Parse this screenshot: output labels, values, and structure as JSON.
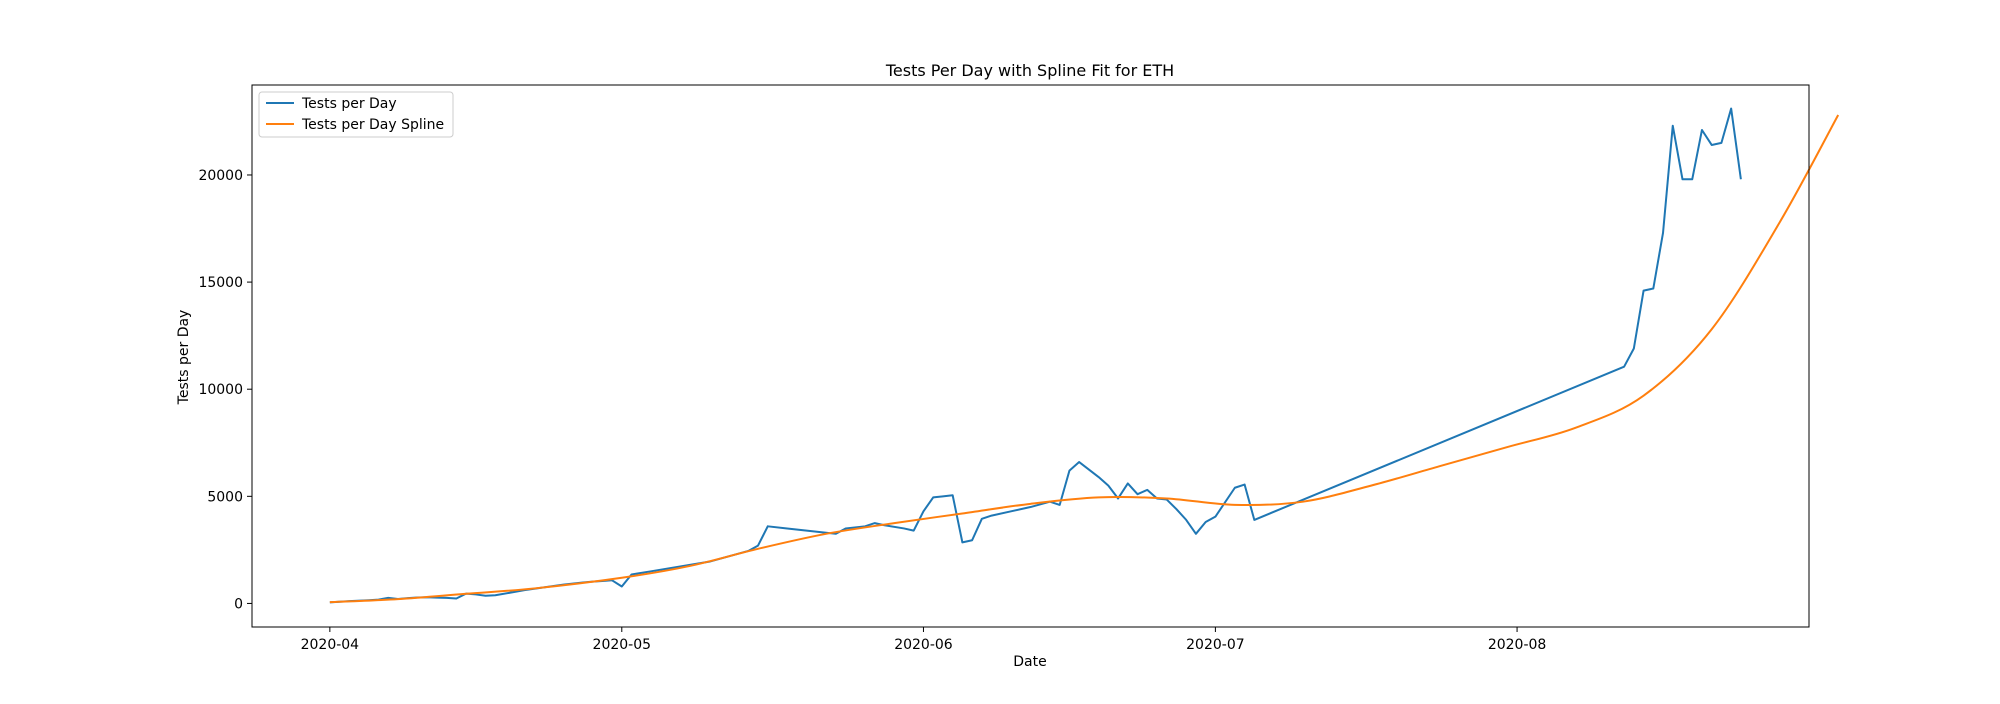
{
  "chart_data": {
    "type": "line",
    "title": "Tests Per Day with Spline Fit for ETH",
    "xlabel": "Date",
    "ylabel": "Tests per Day",
    "x_ticks": [
      "2020-04",
      "2020-05",
      "2020-06",
      "2020-07",
      "2020-08"
    ],
    "y_ticks": [
      0,
      5000,
      10000,
      15000,
      20000
    ],
    "xlim": [
      "2020-03-24",
      "2020-08-31"
    ],
    "ylim": [
      -1100,
      24200
    ],
    "grid": false,
    "legend": {
      "placement": "top-left",
      "entries": [
        "Tests per Day",
        "Tests per Day Spline"
      ]
    },
    "series": [
      {
        "name": "Tests per Day",
        "color": "#1f77b4",
        "points": [
          [
            "2020-04-01",
            50
          ],
          [
            "2020-04-03",
            110
          ],
          [
            "2020-04-05",
            150
          ],
          [
            "2020-04-06",
            180
          ],
          [
            "2020-04-07",
            260
          ],
          [
            "2020-04-08",
            210
          ],
          [
            "2020-04-09",
            250
          ],
          [
            "2020-04-10",
            280
          ],
          [
            "2020-04-11",
            290
          ],
          [
            "2020-04-12",
            270
          ],
          [
            "2020-04-13",
            260
          ],
          [
            "2020-04-14",
            230
          ],
          [
            "2020-04-15",
            460
          ],
          [
            "2020-04-16",
            420
          ],
          [
            "2020-04-17",
            360
          ],
          [
            "2020-04-18",
            380
          ],
          [
            "2020-04-21",
            620
          ],
          [
            "2020-04-23",
            750
          ],
          [
            "2020-04-25",
            880
          ],
          [
            "2020-04-27",
            980
          ],
          [
            "2020-04-28",
            1020
          ],
          [
            "2020-04-29",
            1050
          ],
          [
            "2020-04-30",
            1080
          ],
          [
            "2020-05-01",
            790
          ],
          [
            "2020-05-02",
            1350
          ],
          [
            "2020-05-04",
            1500
          ],
          [
            "2020-05-06",
            1650
          ],
          [
            "2020-05-08",
            1800
          ],
          [
            "2020-05-10",
            1950
          ],
          [
            "2020-05-12",
            2200
          ],
          [
            "2020-05-14",
            2450
          ],
          [
            "2020-05-15",
            2700
          ],
          [
            "2020-05-16",
            3600
          ],
          [
            "2020-05-18",
            3500
          ],
          [
            "2020-05-20",
            3400
          ],
          [
            "2020-05-22",
            3300
          ],
          [
            "2020-05-23",
            3250
          ],
          [
            "2020-05-24",
            3500
          ],
          [
            "2020-05-26",
            3600
          ],
          [
            "2020-05-27",
            3750
          ],
          [
            "2020-05-28",
            3650
          ],
          [
            "2020-05-30",
            3500
          ],
          [
            "2020-05-31",
            3400
          ],
          [
            "2020-06-01",
            4300
          ],
          [
            "2020-06-02",
            4950
          ],
          [
            "2020-06-03",
            5000
          ],
          [
            "2020-06-04",
            5050
          ],
          [
            "2020-06-05",
            2850
          ],
          [
            "2020-06-06",
            2950
          ],
          [
            "2020-06-07",
            3950
          ],
          [
            "2020-06-08",
            4100
          ],
          [
            "2020-06-10",
            4300
          ],
          [
            "2020-06-12",
            4500
          ],
          [
            "2020-06-14",
            4750
          ],
          [
            "2020-06-15",
            4600
          ],
          [
            "2020-06-16",
            6200
          ],
          [
            "2020-06-17",
            6600
          ],
          [
            "2020-06-19",
            5900
          ],
          [
            "2020-06-20",
            5500
          ],
          [
            "2020-06-21",
            4900
          ],
          [
            "2020-06-22",
            5600
          ],
          [
            "2020-06-23",
            5100
          ],
          [
            "2020-06-24",
            5300
          ],
          [
            "2020-06-25",
            4900
          ],
          [
            "2020-06-26",
            4850
          ],
          [
            "2020-06-27",
            4400
          ],
          [
            "2020-06-28",
            3900
          ],
          [
            "2020-06-29",
            3250
          ],
          [
            "2020-06-30",
            3800
          ],
          [
            "2020-07-01",
            4050
          ],
          [
            "2020-07-03",
            5400
          ],
          [
            "2020-07-04",
            5550
          ],
          [
            "2020-07-05",
            3900
          ],
          [
            "2020-08-12",
            11050
          ],
          [
            "2020-08-13",
            11900
          ],
          [
            "2020-08-14",
            14600
          ],
          [
            "2020-08-15",
            14700
          ],
          [
            "2020-08-16",
            17300
          ],
          [
            "2020-08-17",
            22300
          ],
          [
            "2020-08-18",
            19800
          ],
          [
            "2020-08-19",
            19800
          ],
          [
            "2020-08-20",
            22100
          ],
          [
            "2020-08-21",
            21400
          ],
          [
            "2020-08-22",
            21500
          ],
          [
            "2020-08-23",
            23100
          ],
          [
            "2020-08-24",
            19800
          ]
        ]
      },
      {
        "name": "Tests per Day Spline",
        "color": "#ff7f0e",
        "points": [
          [
            "2020-04-01",
            60
          ],
          [
            "2020-04-08",
            200
          ],
          [
            "2020-04-15",
            450
          ],
          [
            "2020-04-22",
            700
          ],
          [
            "2020-05-01",
            1200
          ],
          [
            "2020-05-08",
            1750
          ],
          [
            "2020-05-15",
            2550
          ],
          [
            "2020-05-22",
            3250
          ],
          [
            "2020-05-29",
            3750
          ],
          [
            "2020-06-05",
            4200
          ],
          [
            "2020-06-12",
            4650
          ],
          [
            "2020-06-19",
            4950
          ],
          [
            "2020-06-26",
            4900
          ],
          [
            "2020-07-03",
            4600
          ],
          [
            "2020-07-10",
            4750
          ],
          [
            "2020-07-17",
            5500
          ],
          [
            "2020-07-24",
            6400
          ],
          [
            "2020-07-31",
            7300
          ],
          [
            "2020-08-07",
            8200
          ],
          [
            "2020-08-14",
            9700
          ],
          [
            "2020-08-21",
            12800
          ],
          [
            "2020-08-28",
            17800
          ],
          [
            "2020-09-03",
            22800
          ]
        ]
      }
    ]
  }
}
